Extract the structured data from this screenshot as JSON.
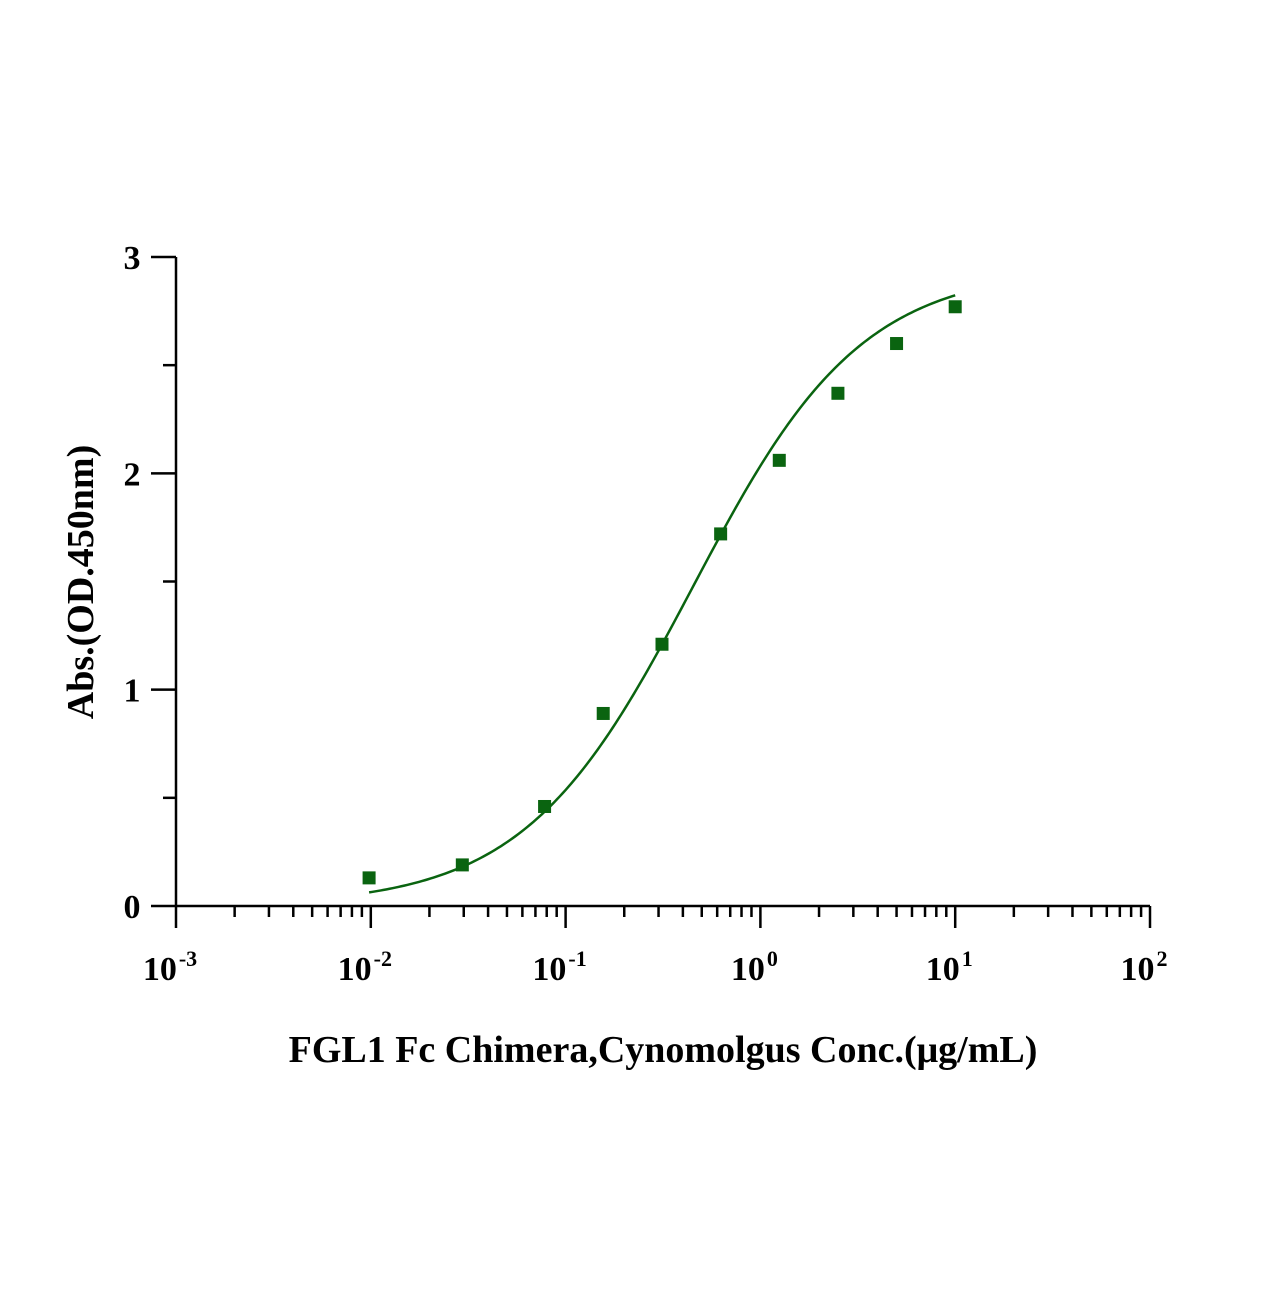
{
  "chart_data": {
    "type": "scatter",
    "xlabel": "FGL1 Fc Chimera,Cynomolgus Conc.(μg/mL)",
    "ylabel": "Abs.(OD.450nm)",
    "x_scale": "log",
    "xlim": [
      0.001,
      100
    ],
    "ylim": [
      0,
      3
    ],
    "x_ticks": [
      {
        "base": "10",
        "exp": "-3"
      },
      {
        "base": "10",
        "exp": "-2"
      },
      {
        "base": "10",
        "exp": "-1"
      },
      {
        "base": "10",
        "exp": "0"
      },
      {
        "base": "10",
        "exp": "1"
      },
      {
        "base": "10",
        "exp": "2"
      }
    ],
    "y_ticks": [
      "0",
      "1",
      "2",
      "3"
    ],
    "grid": false,
    "legend": "none",
    "series": [
      {
        "x": [
          0.0098,
          0.0295,
          0.078,
          0.156,
          0.3125,
          0.625,
          1.25,
          2.5,
          5,
          10
        ],
        "y": [
          0.13,
          0.19,
          0.46,
          0.89,
          1.21,
          1.72,
          2.06,
          2.37,
          2.6,
          2.77
        ],
        "color": "#0a6410",
        "marker": "square",
        "fit_curve": {
          "model": "4PL",
          "bottom": 0.0,
          "top": 2.95,
          "ec50": 0.45,
          "hill": 1.0,
          "x_range": [
            0.0098,
            10
          ]
        }
      }
    ]
  }
}
